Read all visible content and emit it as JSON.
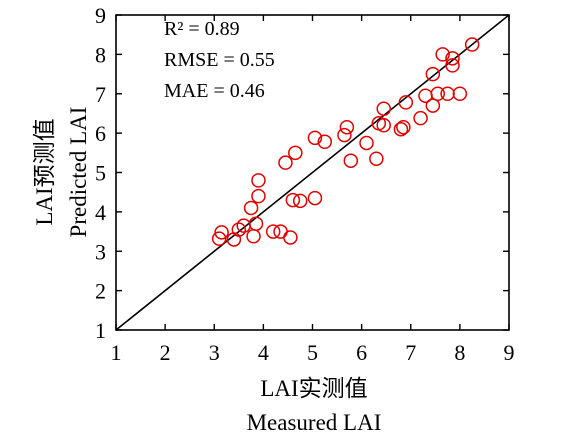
{
  "chart_data": {
    "type": "scatter",
    "xlabel": "LAI实测值",
    "xlabel_en": "Measured LAI",
    "ylabel": "LAI预测值",
    "ylabel_en": "Predicted LAI",
    "xlim": [
      1,
      9
    ],
    "ylim": [
      1,
      9
    ],
    "x_ticks": [
      "1",
      "2",
      "3",
      "4",
      "5",
      "6",
      "7",
      "8",
      "9"
    ],
    "y_ticks": [
      "1",
      "2",
      "3",
      "4",
      "5",
      "6",
      "7",
      "8",
      "9"
    ],
    "reference_line": {
      "from": [
        1,
        1
      ],
      "to": [
        9,
        9
      ]
    },
    "stats": [
      "R² = 0.89",
      "RMSE = 0.55",
      "MAE = 0.46"
    ],
    "grid": false,
    "marker": "open-circle",
    "marker_color": "#e00000",
    "line_color": "#000000",
    "points": [
      {
        "x": 3.1,
        "y": 3.32
      },
      {
        "x": 3.15,
        "y": 3.48
      },
      {
        "x": 3.4,
        "y": 3.3
      },
      {
        "x": 3.5,
        "y": 3.55
      },
      {
        "x": 3.6,
        "y": 3.65
      },
      {
        "x": 3.8,
        "y": 3.38
      },
      {
        "x": 3.85,
        "y": 3.7
      },
      {
        "x": 3.75,
        "y": 4.1
      },
      {
        "x": 3.9,
        "y": 4.4
      },
      {
        "x": 3.9,
        "y": 4.8
      },
      {
        "x": 4.2,
        "y": 3.5
      },
      {
        "x": 4.35,
        "y": 3.5
      },
      {
        "x": 4.55,
        "y": 3.35
      },
      {
        "x": 4.6,
        "y": 4.3
      },
      {
        "x": 4.75,
        "y": 4.28
      },
      {
        "x": 5.05,
        "y": 4.35
      },
      {
        "x": 4.45,
        "y": 5.25
      },
      {
        "x": 4.65,
        "y": 5.5
      },
      {
        "x": 5.05,
        "y": 5.88
      },
      {
        "x": 5.25,
        "y": 5.78
      },
      {
        "x": 5.65,
        "y": 5.95
      },
      {
        "x": 5.7,
        "y": 6.15
      },
      {
        "x": 5.78,
        "y": 5.3
      },
      {
        "x": 6.1,
        "y": 5.75
      },
      {
        "x": 6.3,
        "y": 5.35
      },
      {
        "x": 6.35,
        "y": 6.25
      },
      {
        "x": 6.45,
        "y": 6.2
      },
      {
        "x": 6.45,
        "y": 6.62
      },
      {
        "x": 6.8,
        "y": 6.1
      },
      {
        "x": 6.85,
        "y": 6.15
      },
      {
        "x": 6.9,
        "y": 6.78
      },
      {
        "x": 7.2,
        "y": 6.38
      },
      {
        "x": 7.3,
        "y": 6.95
      },
      {
        "x": 7.45,
        "y": 6.7
      },
      {
        "x": 7.55,
        "y": 7.0
      },
      {
        "x": 7.75,
        "y": 7.0
      },
      {
        "x": 8.0,
        "y": 7.0
      },
      {
        "x": 7.45,
        "y": 7.5
      },
      {
        "x": 7.65,
        "y": 8.0
      },
      {
        "x": 7.85,
        "y": 7.72
      },
      {
        "x": 7.85,
        "y": 7.9
      },
      {
        "x": 8.25,
        "y": 8.25
      }
    ]
  }
}
